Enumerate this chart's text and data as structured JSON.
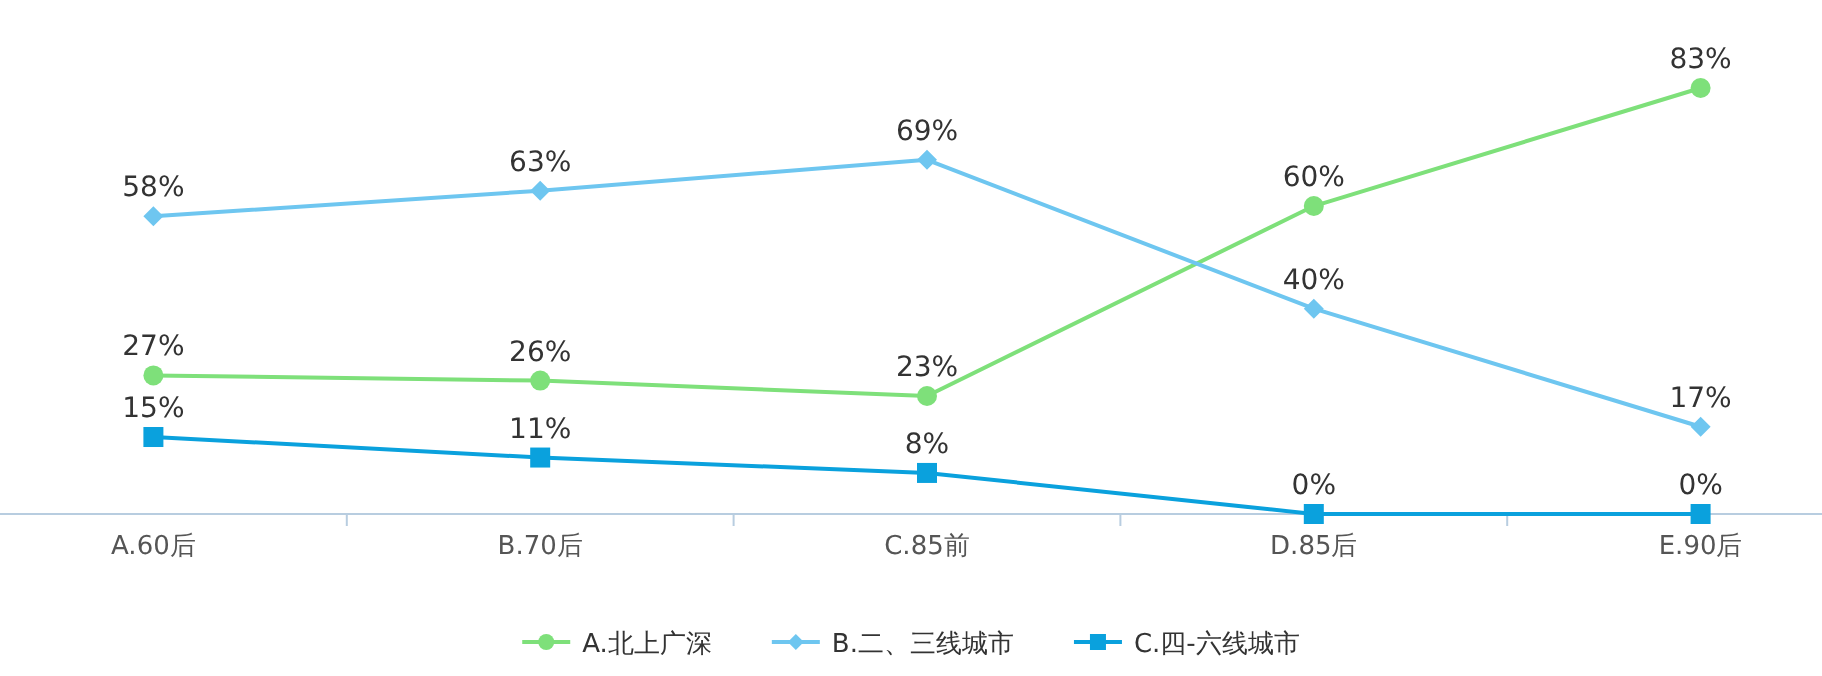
{
  "chart_data": {
    "type": "line",
    "categories": [
      "A.60后",
      "B.70后",
      "C.85前",
      "D.85后",
      "E.90后"
    ],
    "legend": "bottom",
    "grid": false,
    "series": [
      {
        "name": "A.北上广深",
        "color": "#7ee07a",
        "marker": "circle",
        "values": [
          27,
          26,
          23,
          60,
          83
        ],
        "value_labels": [
          "27%",
          "26%",
          "23%",
          "60%",
          "83%"
        ]
      },
      {
        "name": "B.二、三线城市",
        "color": "#6ec6f0",
        "marker": "diamond",
        "values": [
          58,
          63,
          69,
          40,
          17
        ],
        "value_labels": [
          "58%",
          "63%",
          "69%",
          "40%",
          "17%"
        ]
      },
      {
        "name": "C.四-六线城市",
        "color": "#0aa1dd",
        "marker": "square",
        "values": [
          15,
          11,
          8,
          0,
          0
        ],
        "value_labels": [
          "15%",
          "11%",
          "8%",
          "0%",
          "0%"
        ]
      }
    ]
  }
}
